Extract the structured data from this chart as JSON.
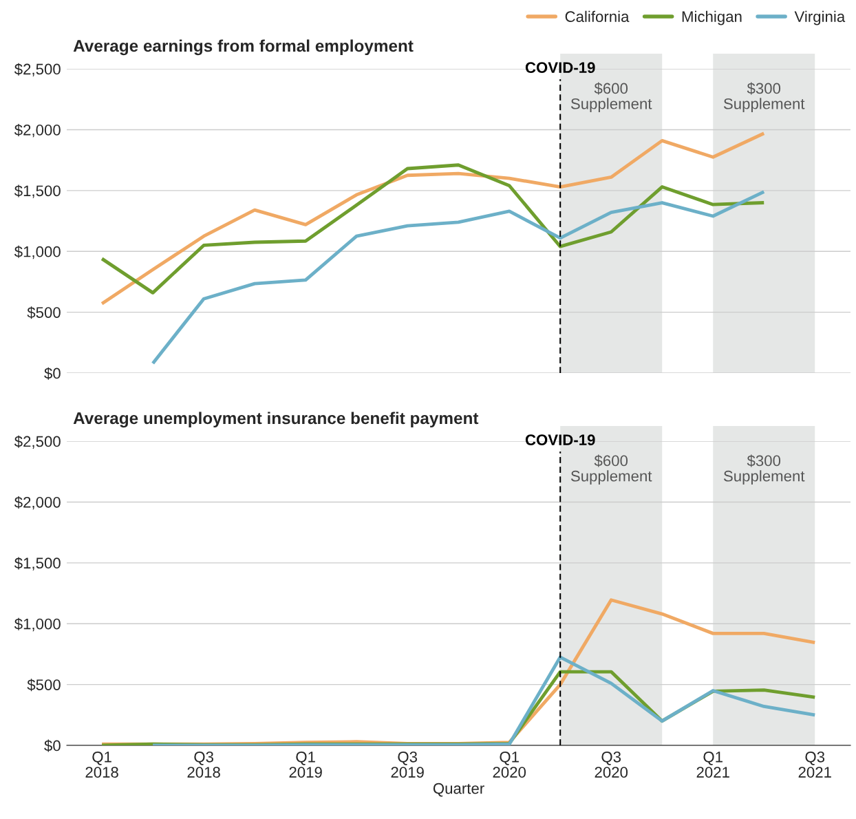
{
  "chart_data": [
    {
      "type": "line",
      "title": "Average earnings from formal employment",
      "series": [
        {
          "name": "California",
          "color": "#f0a964",
          "values": [
            570,
            850,
            1125,
            1340,
            1220,
            1465,
            1625,
            1640,
            1600,
            1530,
            1610,
            1910,
            1775,
            1970,
            null
          ]
        },
        {
          "name": "Michigan",
          "color": "#6f9e2e",
          "values": [
            940,
            660,
            1050,
            1075,
            1085,
            1380,
            1680,
            1710,
            1540,
            1040,
            1160,
            1530,
            1385,
            1400,
            null
          ]
        },
        {
          "name": "Virginia",
          "color": "#6cb0c8",
          "values": [
            null,
            80,
            610,
            735,
            765,
            1125,
            1210,
            1240,
            1330,
            1110,
            1320,
            1400,
            1290,
            1490,
            null
          ]
        }
      ],
      "ylim": [
        0,
        2500
      ],
      "yticks": [
        {
          "value": 0,
          "label": "$0"
        },
        {
          "value": 500,
          "label": "$500"
        },
        {
          "value": 1000,
          "label": "$1,000"
        },
        {
          "value": 1500,
          "label": "$1,500"
        },
        {
          "value": 2000,
          "label": "$2,000"
        },
        {
          "value": 2500,
          "label": "$2,500"
        }
      ],
      "grid": "y",
      "legend": "top right",
      "line_style": "solid",
      "annotations": [
        "COVID-19",
        "$600\nSupplement",
        "$300\nSupplement"
      ]
    },
    {
      "type": "line",
      "title": "Average unemployment insurance benefit payment",
      "xlabel": "Quarter",
      "categories": [
        "Q1\n2018",
        null,
        "Q3\n2018",
        null,
        "Q1\n2019",
        null,
        "Q3\n2019",
        null,
        "Q1\n2020",
        null,
        "Q3\n2020",
        null,
        "Q1\n2021",
        null,
        "Q3\n2021"
      ],
      "series": [
        {
          "color": "#f0a964",
          "values": [
            10,
            10,
            10,
            15,
            25,
            30,
            15,
            15,
            25,
            500,
            1195,
            1080,
            920,
            920,
            845
          ]
        },
        {
          "color": "#6f9e2e",
          "values": [
            0,
            10,
            5,
            5,
            10,
            10,
            10,
            10,
            15,
            605,
            605,
            200,
            445,
            455,
            395
          ]
        },
        {
          "color": "#6cb0c8",
          "values": [
            null,
            0,
            0,
            0,
            5,
            5,
            5,
            5,
            10,
            725,
            510,
            200,
            450,
            320,
            250
          ]
        }
      ],
      "ylim": [
        0,
        2500
      ],
      "yticks": [
        {
          "value": 0,
          "label": "$0"
        },
        {
          "value": 500,
          "label": "$500"
        },
        {
          "value": 1000,
          "label": "$1,000"
        },
        {
          "value": 1500,
          "label": "$1,500"
        },
        {
          "value": 2000,
          "label": "$2,000"
        },
        {
          "value": 2500,
          "label": "$2,500"
        }
      ],
      "grid": "y",
      "line_style": "solid",
      "annotations": [
        "COVID-19",
        "$600\nSupplement",
        "$300\nSupplement"
      ]
    }
  ]
}
